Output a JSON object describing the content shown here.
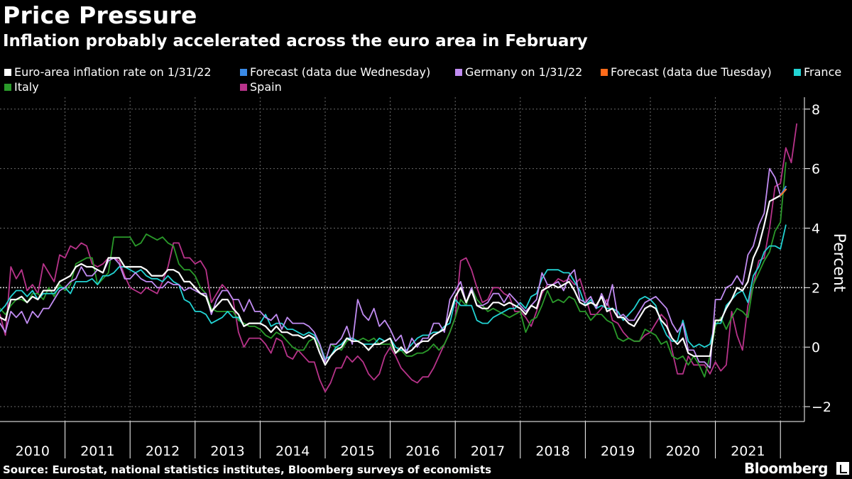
{
  "title": "Price Pressure",
  "subtitle": "Inflation probably accelerated across the euro area in February",
  "source": "Source: Eurostat, national statistics institutes, Bloomberg surveys of economists",
  "brand": "Bloomberg",
  "chart_data": {
    "type": "line",
    "ylabel": "Percent",
    "ylim": [
      -2.5,
      8.4
    ],
    "yticks": [
      -2,
      0,
      2,
      4,
      6,
      8
    ],
    "xticks": [
      "2010",
      "2011",
      "2012",
      "2013",
      "2014",
      "2015",
      "2016",
      "2017",
      "2018",
      "2019",
      "2020",
      "2021"
    ],
    "x_start": "2010-01",
    "x_end": "2022-02",
    "reference_line": 2,
    "grid": true,
    "legend_position": "top",
    "series": [
      {
        "name": "Euro-area inflation rate on 1/31/22",
        "color": "#ffffff",
        "values": [
          1.0,
          0.9,
          1.6,
          1.6,
          1.7,
          1.5,
          1.7,
          1.6,
          1.9,
          1.9,
          1.9,
          2.2,
          2.3,
          2.4,
          2.7,
          2.8,
          2.7,
          2.7,
          2.6,
          2.5,
          3.0,
          3.0,
          3.0,
          2.7,
          2.7,
          2.7,
          2.7,
          2.6,
          2.4,
          2.4,
          2.4,
          2.6,
          2.6,
          2.5,
          2.2,
          2.2,
          2.0,
          1.8,
          1.7,
          1.2,
          1.4,
          1.6,
          1.6,
          1.3,
          1.1,
          0.7,
          0.8,
          0.8,
          0.8,
          0.7,
          0.5,
          0.7,
          0.5,
          0.5,
          0.4,
          0.4,
          0.3,
          0.4,
          0.3,
          -0.2,
          -0.6,
          -0.3,
          -0.1,
          0.0,
          0.3,
          0.2,
          0.2,
          0.1,
          -0.1,
          0.1,
          0.1,
          0.2,
          0.3,
          -0.2,
          0.0,
          -0.2,
          -0.1,
          0.1,
          0.2,
          0.2,
          0.4,
          0.5,
          0.6,
          1.1,
          1.7,
          2.0,
          1.5,
          1.9,
          1.4,
          1.3,
          1.3,
          1.5,
          1.5,
          1.4,
          1.5,
          1.4,
          1.3,
          1.1,
          1.4,
          1.3,
          1.9,
          2.0,
          2.1,
          2.0,
          2.1,
          2.2,
          1.9,
          1.5,
          1.4,
          1.5,
          1.4,
          1.7,
          1.2,
          1.3,
          1.0,
          1.0,
          0.8,
          0.7,
          1.0,
          1.3,
          1.4,
          1.3,
          0.9,
          0.7,
          0.3,
          0.1,
          0.3,
          -0.2,
          -0.3,
          -0.3,
          -0.3,
          -0.3,
          0.9,
          0.9,
          1.3,
          1.6,
          2.0,
          1.9,
          2.2,
          3.0,
          3.4,
          4.1,
          4.9,
          5.0,
          5.1,
          5.3
        ]
      },
      {
        "name": "Forecast (data due Wednesday)",
        "color": "#3a8ae6",
        "values_forecast": [
          {
            "x": "2022-01",
            "y": 5.1
          },
          {
            "x": "2022-02",
            "y": 5.4
          }
        ]
      },
      {
        "name": "Germany on 1/31/22",
        "color": "#c18cf2",
        "values": [
          0.8,
          0.5,
          1.2,
          1.0,
          1.2,
          0.8,
          1.2,
          1.0,
          1.3,
          1.3,
          1.6,
          1.9,
          2.0,
          2.2,
          2.3,
          2.7,
          2.4,
          2.4,
          2.6,
          2.5,
          2.9,
          3.0,
          2.8,
          2.3,
          2.3,
          2.5,
          2.3,
          2.2,
          2.2,
          2.0,
          2.0,
          2.2,
          2.1,
          2.1,
          1.9,
          2.0,
          1.9,
          1.8,
          1.8,
          1.1,
          1.6,
          1.9,
          1.9,
          1.6,
          1.6,
          1.2,
          1.6,
          1.2,
          1.2,
          1.0,
          0.9,
          1.1,
          0.6,
          1.0,
          0.8,
          0.8,
          0.8,
          0.7,
          0.5,
          0.1,
          -0.5,
          0.1,
          0.1,
          0.3,
          0.7,
          0.1,
          1.6,
          1.1,
          0.9,
          1.3,
          0.7,
          0.9,
          0.6,
          0.2,
          0.4,
          -0.2,
          0.3,
          0.0,
          0.3,
          0.3,
          0.8,
          0.8,
          0.5,
          1.6,
          1.9,
          2.2,
          1.5,
          2.0,
          1.4,
          1.4,
          1.5,
          1.8,
          1.8,
          1.5,
          1.8,
          1.6,
          1.4,
          1.2,
          1.4,
          1.6,
          2.5,
          2.1,
          2.1,
          2.2,
          1.9,
          2.4,
          2.6,
          1.6,
          1.5,
          1.7,
          1.3,
          1.8,
          1.4,
          2.1,
          1.0,
          1.1,
          0.9,
          0.9,
          1.2,
          1.5,
          1.6,
          1.7,
          1.5,
          1.3,
          0.8,
          0.5,
          0.8,
          -0.1,
          -0.1,
          -0.5,
          -0.5,
          -0.7,
          1.6,
          1.6,
          2.0,
          2.1,
          2.4,
          2.1,
          3.1,
          3.4,
          4.1,
          4.5,
          6.0,
          5.7,
          5.1,
          5.4
        ]
      },
      {
        "name": "Forecast (data due Tuesday)",
        "color": "#ff6b1a",
        "values_forecast": [
          {
            "x": "2022-01",
            "y": 5.1
          },
          {
            "x": "2022-02",
            "y": 5.3
          }
        ]
      },
      {
        "name": "France",
        "color": "#22d3d3",
        "values": [
          1.2,
          1.4,
          1.7,
          1.9,
          1.9,
          1.7,
          1.9,
          1.6,
          1.8,
          1.8,
          1.8,
          2.0,
          2.0,
          1.8,
          2.2,
          2.2,
          2.2,
          2.3,
          2.1,
          2.4,
          2.4,
          2.5,
          2.7,
          2.7,
          2.6,
          2.5,
          2.6,
          2.4,
          2.3,
          2.3,
          2.2,
          2.4,
          2.2,
          2.1,
          1.6,
          1.5,
          1.2,
          1.2,
          1.1,
          0.8,
          0.9,
          1.0,
          1.2,
          1.0,
          1.0,
          0.7,
          0.8,
          0.8,
          0.8,
          1.1,
          0.7,
          0.8,
          0.8,
          0.6,
          0.6,
          0.5,
          0.4,
          0.5,
          0.4,
          0.1,
          -0.4,
          -0.3,
          0.0,
          0.1,
          0.3,
          0.3,
          0.2,
          0.1,
          0.1,
          0.1,
          0.3,
          0.2,
          0.3,
          0.0,
          -0.1,
          -0.1,
          0.1,
          0.3,
          0.4,
          0.4,
          0.5,
          0.5,
          0.7,
          0.8,
          1.6,
          1.4,
          1.4,
          1.4,
          0.9,
          0.8,
          0.8,
          1.0,
          1.1,
          1.2,
          1.3,
          1.3,
          1.5,
          1.3,
          1.7,
          1.8,
          2.3,
          2.6,
          2.6,
          2.6,
          2.5,
          2.5,
          2.2,
          1.9,
          1.4,
          1.6,
          1.3,
          1.4,
          1.3,
          1.3,
          1.2,
          0.9,
          1.1,
          1.3,
          1.6,
          1.7,
          1.6,
          1.4,
          0.8,
          0.4,
          0.2,
          0.2,
          0.9,
          0.2,
          0.0,
          0.1,
          0.0,
          0.1,
          0.8,
          0.8,
          1.4,
          1.6,
          1.8,
          1.9,
          1.5,
          2.4,
          2.7,
          3.2,
          3.4,
          3.4,
          3.3,
          4.1
        ]
      },
      {
        "name": "Italy",
        "color": "#2a9a2a",
        "values": [
          1.3,
          1.1,
          1.4,
          1.6,
          1.6,
          1.5,
          1.8,
          1.8,
          1.6,
          2.0,
          1.7,
          2.1,
          1.9,
          2.1,
          2.8,
          2.9,
          3.0,
          3.0,
          2.1,
          2.3,
          2.5,
          3.7,
          3.7,
          3.7,
          3.7,
          3.4,
          3.5,
          3.8,
          3.7,
          3.6,
          3.7,
          3.5,
          3.4,
          2.8,
          2.6,
          2.6,
          2.4,
          2.0,
          1.8,
          1.3,
          1.2,
          1.2,
          1.2,
          1.2,
          0.9,
          0.8,
          0.7,
          0.7,
          0.6,
          0.4,
          0.3,
          0.5,
          0.4,
          0.2,
          0.0,
          -0.1,
          -0.1,
          0.2,
          0.3,
          0.0,
          -0.5,
          0.1,
          0.0,
          -0.1,
          0.2,
          0.3,
          0.2,
          0.3,
          0.2,
          0.3,
          0.1,
          0.1,
          0.1,
          -0.2,
          -0.1,
          -0.3,
          -0.3,
          -0.2,
          -0.2,
          -0.1,
          0.1,
          -0.1,
          0.1,
          0.5,
          1.0,
          1.6,
          1.4,
          2.0,
          1.6,
          1.4,
          1.2,
          1.3,
          1.2,
          1.1,
          1.0,
          1.1,
          1.2,
          0.5,
          0.9,
          1.0,
          1.4,
          1.9,
          1.5,
          1.6,
          1.5,
          1.7,
          1.6,
          1.2,
          1.2,
          0.9,
          1.1,
          1.1,
          0.9,
          0.8,
          0.3,
          0.2,
          0.3,
          0.2,
          0.2,
          0.6,
          0.5,
          0.4,
          0.1,
          0.2,
          -0.3,
          -0.4,
          -0.3,
          -0.6,
          -0.3,
          -0.6,
          -1.0,
          -0.3,
          0.7,
          1.0,
          0.6,
          1.0,
          1.3,
          1.2,
          1.0,
          2.1,
          2.5,
          2.9,
          3.2,
          3.9,
          4.2,
          6.2
        ]
      },
      {
        "name": "Spain",
        "color": "#b8338a",
        "values": [
          1.1,
          0.4,
          2.7,
          2.3,
          2.6,
          1.9,
          2.1,
          1.8,
          2.8,
          2.5,
          2.2,
          3.1,
          3.0,
          3.4,
          3.3,
          3.5,
          3.4,
          2.8,
          2.7,
          2.8,
          3.0,
          3.0,
          2.9,
          2.4,
          2.0,
          1.9,
          1.8,
          2.0,
          1.9,
          1.8,
          2.2,
          2.7,
          3.5,
          3.5,
          3.0,
          3.0,
          2.8,
          2.9,
          2.6,
          1.5,
          1.8,
          2.1,
          1.9,
          1.6,
          0.5,
          0.0,
          0.3,
          0.3,
          0.3,
          0.1,
          -0.2,
          0.3,
          0.2,
          -0.3,
          -0.4,
          -0.1,
          -0.3,
          -0.5,
          -0.5,
          -1.1,
          -1.5,
          -1.2,
          -0.7,
          -0.7,
          -0.3,
          -0.5,
          -0.3,
          -0.5,
          -0.9,
          -1.1,
          -0.9,
          -0.3,
          0.0,
          -0.3,
          -0.7,
          -0.9,
          -1.1,
          -1.2,
          -1.0,
          -1.0,
          -0.7,
          -0.3,
          0.1,
          0.5,
          1.0,
          2.9,
          3.0,
          2.6,
          2.0,
          1.5,
          1.6,
          2.0,
          2.0,
          1.8,
          1.7,
          1.2,
          1.2,
          1.0,
          0.7,
          1.2,
          1.8,
          2.1,
          2.1,
          2.3,
          2.2,
          2.3,
          2.1,
          2.3,
          1.7,
          1.1,
          1.1,
          1.3,
          1.6,
          0.9,
          0.8,
          0.5,
          0.3,
          0.2,
          0.2,
          0.4,
          0.5,
          0.8,
          1.1,
          0.9,
          -0.1,
          -0.9,
          -0.9,
          -0.3,
          -0.6,
          -0.6,
          -0.6,
          -0.9,
          -0.5,
          -0.8,
          -0.6,
          1.2,
          0.4,
          -0.1,
          1.4,
          2.1,
          2.9,
          3.0,
          4.0,
          5.4,
          5.5,
          6.7,
          6.2,
          7.5
        ]
      }
    ]
  }
}
